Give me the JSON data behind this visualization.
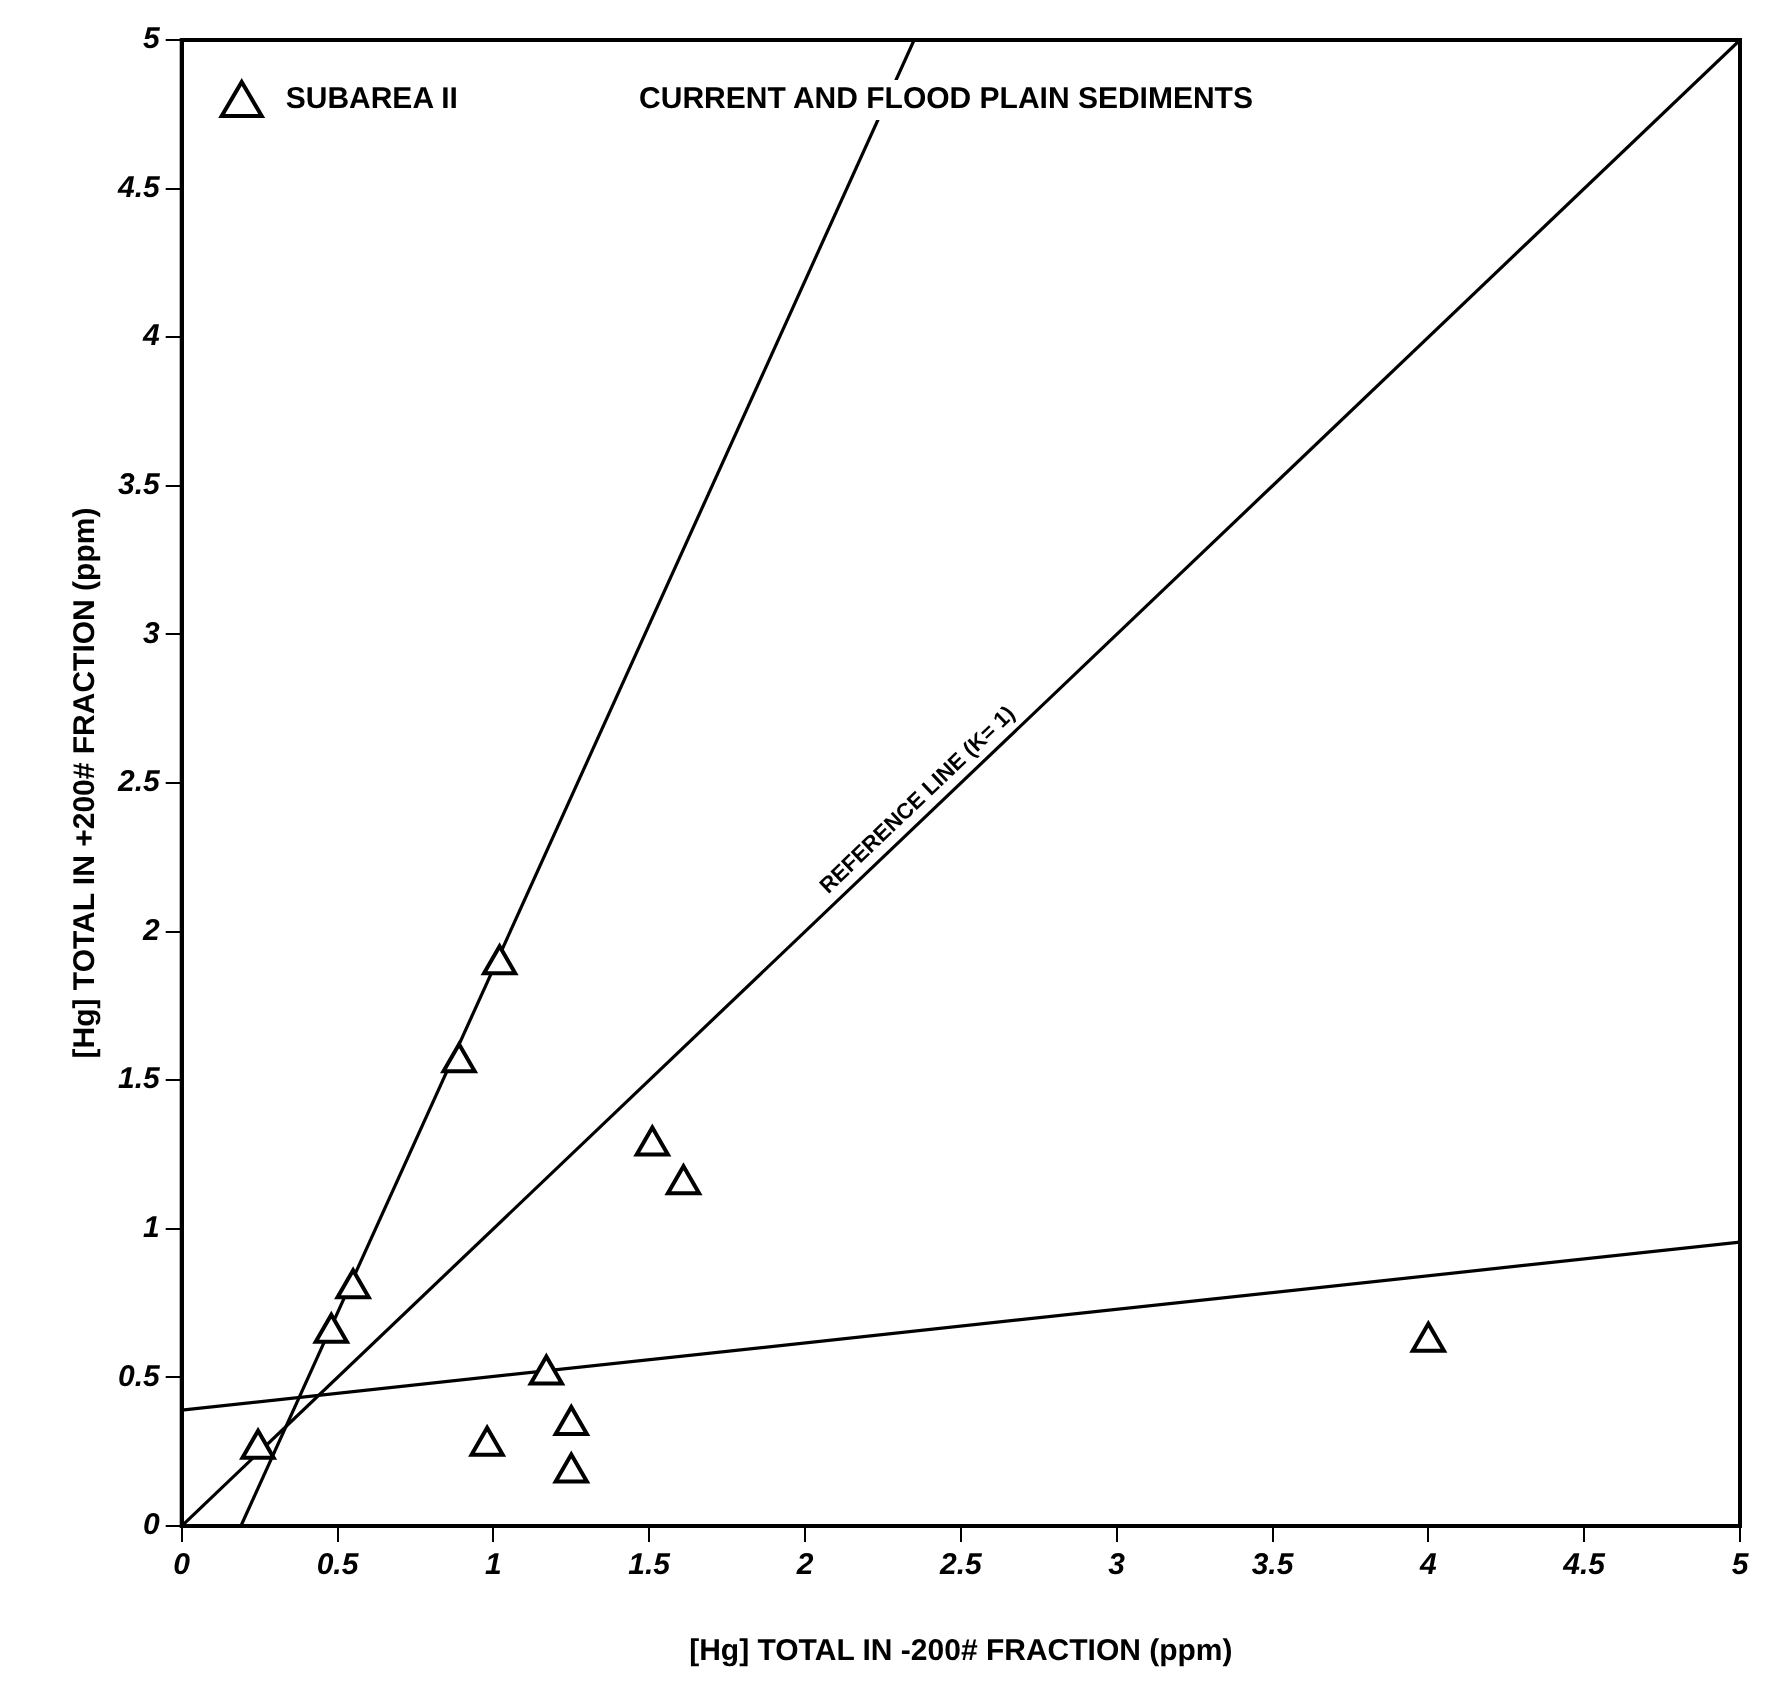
{
  "chart_data": {
    "type": "scatter",
    "title": "CURRENT AND FLOOD PLAIN SEDIMENTS",
    "xlabel": "[Hg] TOTAL IN -200# FRACTION (ppm)",
    "ylabel": "[Hg] TOTAL IN +200# FRACTION (ppm)",
    "x": [
      0.245,
      0.48,
      0.55,
      0.89,
      1.02,
      0.98,
      1.17,
      1.25,
      1.25,
      1.51,
      1.61,
      4.0
    ],
    "series": [
      {
        "name": "SUBAREA II",
        "type": "scatter",
        "color": "#000000",
        "marker": "triangle",
        "values": [
          0.26,
          0.65,
          0.8,
          1.56,
          1.89,
          0.27,
          0.51,
          0.34,
          0.18,
          1.28,
          1.15,
          0.62
        ]
      },
      {
        "type": "line",
        "color": "#000000",
        "marker": "none",
        "x": [
          0.19,
          2.35
        ],
        "values": [
          0,
          5
        ]
      },
      {
        "type": "line",
        "color": "#000000",
        "marker": "none",
        "x": [
          0,
          5
        ],
        "values": [
          0,
          5
        ]
      },
      {
        "type": "line",
        "color": "#000000",
        "marker": "none",
        "x": [
          0,
          5
        ],
        "values": [
          0.39,
          0.955
        ]
      }
    ],
    "annotations": [
      {
        "text": "REFERENCE LINE (K= 1)",
        "x": 2.4,
        "y": 2.4
      }
    ],
    "xlim": [
      0,
      5
    ],
    "ylim": [
      0,
      5
    ],
    "xticks": [
      0,
      0.5,
      1,
      1.5,
      2,
      2.5,
      3,
      3.5,
      4,
      4.5,
      5
    ],
    "yticks": [
      0,
      0.5,
      1,
      1.5,
      2,
      2.5,
      3,
      3.5,
      4,
      4.5,
      5
    ],
    "grid": false,
    "legend": "top left"
  }
}
